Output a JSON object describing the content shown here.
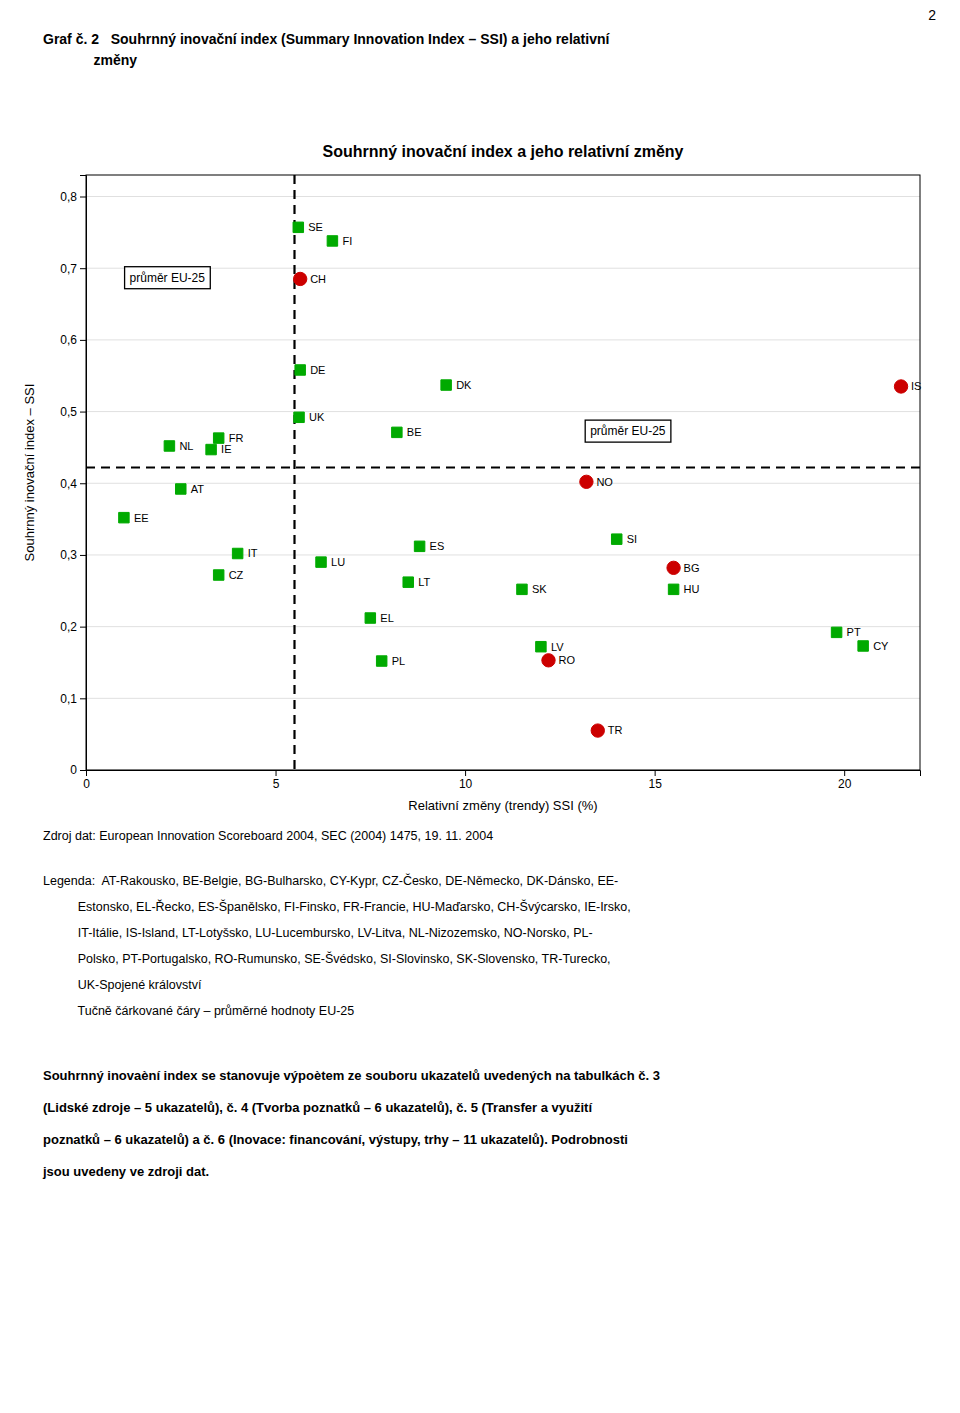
{
  "page_number": "2",
  "page_title_lines": [
    "Graf č. 2   Souhrnný inovační index (Summary Innovation Index – SSI) a jeho relativní",
    "             změny"
  ],
  "chart_data": {
    "type": "scatter",
    "title": "Souhrnný inovační index a jeho relativní změny",
    "xlabel": "Relativní změny (trendy) SSI (%)",
    "ylabel": "Souhrnný inovační index – SSI",
    "xlim": [
      0,
      22
    ],
    "ylim": [
      0,
      0.83
    ],
    "xticks": [
      0,
      5,
      10,
      15,
      20
    ],
    "yticks": [
      0,
      {
        "value": 0.1,
        "label": "0,1"
      },
      {
        "value": 0.2,
        "label": "0,2"
      },
      {
        "value": 0.3,
        "label": "0,3"
      },
      {
        "value": 0.4,
        "label": "0,4"
      },
      {
        "value": 0.5,
        "label": "0,5"
      },
      {
        "value": 0.6,
        "label": "0,6"
      },
      {
        "value": 0.7,
        "label": "0,7"
      },
      {
        "value": 0.8,
        "label": "0,8"
      }
    ],
    "grid": "y",
    "reference_lines": [
      {
        "axis": "x",
        "value": 5.5,
        "line_style": "dashed",
        "color": "#000000"
      },
      {
        "axis": "y",
        "value": 0.422,
        "line_style": "dashed",
        "color": "#000000"
      }
    ],
    "annotations": [
      {
        "text": "průměr EU-25",
        "x": 1.15,
        "y": 0.687
      },
      {
        "text": "průměr EU-25",
        "x": 13.3,
        "y": 0.473
      }
    ],
    "series": [
      {
        "color": "#00aa00",
        "marker": "square",
        "labels": [
          "SE",
          "FI",
          "DE",
          "DK",
          "UK",
          "BE",
          "FR",
          "NL",
          "IE",
          "AT",
          "EE",
          "IT",
          "LU",
          "CZ",
          "ES",
          "SI",
          "LT",
          "SK",
          "HU",
          "EL",
          "PL",
          "LV",
          "PT",
          "CY"
        ],
        "x": [
          5.6,
          6.5,
          5.65,
          9.5,
          5.62,
          8.2,
          3.5,
          2.2,
          3.3,
          2.5,
          1.0,
          4.0,
          6.2,
          3.5,
          8.8,
          14.0,
          8.5,
          11.5,
          15.5,
          7.5,
          7.8,
          12.0,
          19.8,
          20.5
        ],
        "values": [
          0.757,
          0.738,
          0.558,
          0.537,
          0.492,
          0.471,
          0.463,
          0.452,
          0.447,
          0.392,
          0.352,
          0.302,
          0.29,
          0.272,
          0.312,
          0.322,
          0.262,
          0.252,
          0.252,
          0.212,
          0.152,
          0.172,
          0.192,
          0.173
        ]
      },
      {
        "color": "#cc0000",
        "marker": "circle",
        "labels": [
          "CH",
          "IS",
          "NO",
          "BG",
          "RO",
          "TR"
        ],
        "x": [
          5.65,
          21.5,
          13.2,
          15.5,
          12.2,
          13.5
        ],
        "values": [
          0.685,
          0.535,
          0.402,
          0.282,
          0.153,
          0.055
        ]
      }
    ]
  },
  "source": "Zdroj dat: European Innovation Scoreboard 2004, SEC (2004) 1475, 19. 11. 2004",
  "legend_lines": [
    "Legenda:  AT-Rakousko, BE-Belgie, BG-Bulharsko, CY-Kypr, CZ-Česko, DE-Německo, DK-Dánsko, EE-",
    "          Estonsko, EL-Řecko, ES-Španělsko, FI-Finsko, FR-Francie, HU-Maďarsko, CH-Švýcarsko, IE-Irsko,",
    "          IT-Itálie, IS-Island, LT-Lotyšsko, LU-Lucembursko, LV-Litva, NL-Nizozemsko, NO-Norsko, PL-",
    "          Polsko, PT-Portugalsko, RO-Rumunsko, SE-Švédsko, SI-Slovinsko, SK-Slovensko, TR-Turecko,",
    "          UK-Spojené království"
  ],
  "legend_note": "          Tučně čárkované čáry – průměrné hodnoty EU-25",
  "bold_lines": [
    "Souhrnný inovaèní index se stanovuje výpoètem ze souboru ukazatelů uvedených na tabulkách č. 3",
    "(Lidské zdroje – 5 ukazatelů), č. 4 (Tvorba poznatků – 6 ukazatelů), č. 5 (Transfer a využití",
    "poznatků – 6 ukazatelů) a č. 6 (Inovace: financování, výstupy, trhy – 11 ukazatelů). Podrobnosti",
    "jsou uvedeny ve zdroji dat."
  ]
}
